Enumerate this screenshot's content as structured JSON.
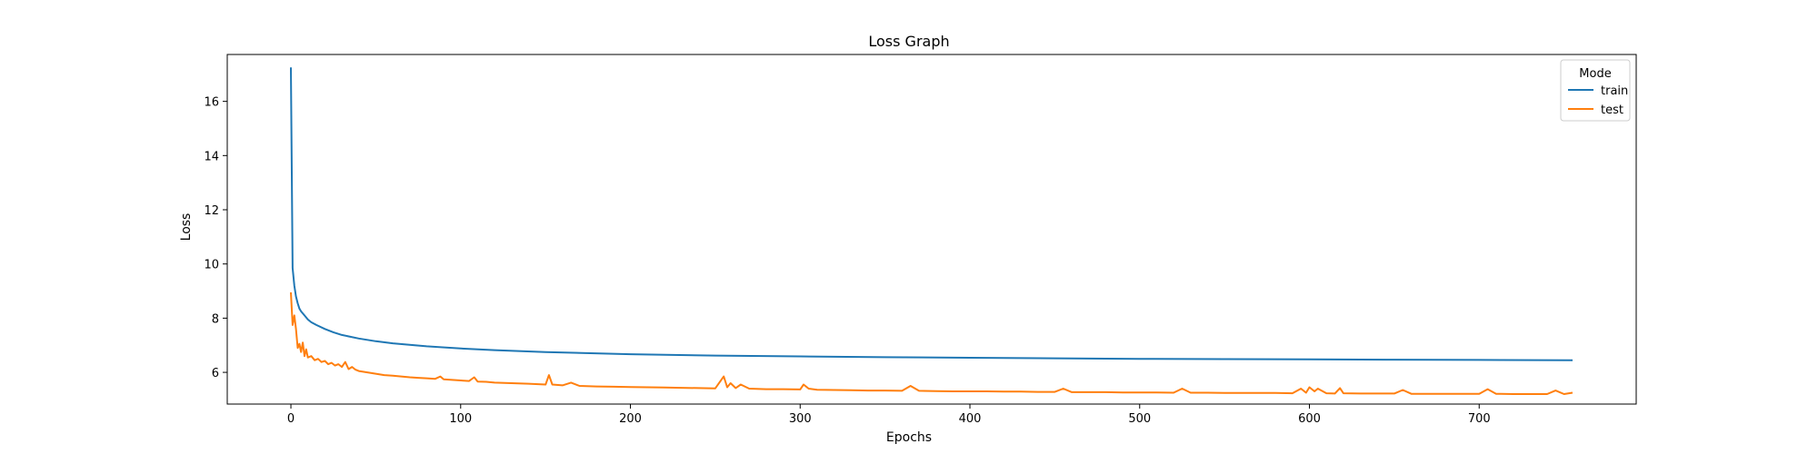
{
  "chart_data": {
    "type": "line",
    "title": "Loss Graph",
    "xlabel": "Epochs",
    "ylabel": "Loss",
    "xlim": [
      -37.5,
      792.5
    ],
    "ylim": [
      4.83,
      17.73
    ],
    "x_ticks": [
      0,
      100,
      200,
      300,
      400,
      500,
      600,
      700
    ],
    "y_ticks": [
      6,
      8,
      10,
      12,
      14,
      16
    ],
    "grid": false,
    "legend": {
      "title": "Mode",
      "position": "top-right"
    },
    "series": [
      {
        "name": "train",
        "color": "#1f77b4",
        "x": [
          0,
          1,
          2,
          3,
          4,
          5,
          6,
          8,
          10,
          12,
          15,
          20,
          25,
          30,
          40,
          50,
          60,
          80,
          100,
          120,
          150,
          200,
          250,
          300,
          350,
          400,
          450,
          500,
          550,
          600,
          650,
          700,
          755
        ],
        "values": [
          17.25,
          9.85,
          9.2,
          8.8,
          8.55,
          8.35,
          8.25,
          8.1,
          7.95,
          7.85,
          7.75,
          7.6,
          7.48,
          7.38,
          7.25,
          7.15,
          7.07,
          6.96,
          6.88,
          6.82,
          6.75,
          6.67,
          6.62,
          6.59,
          6.56,
          6.54,
          6.52,
          6.5,
          6.49,
          6.48,
          6.47,
          6.46,
          6.45
        ]
      },
      {
        "name": "test",
        "color": "#ff7f0e",
        "x": [
          0,
          1,
          2,
          3,
          4,
          5,
          6,
          7,
          8,
          9,
          10,
          12,
          14,
          16,
          18,
          20,
          22,
          24,
          26,
          28,
          30,
          32,
          34,
          36,
          38,
          40,
          45,
          50,
          55,
          60,
          65,
          70,
          75,
          80,
          85,
          88,
          90,
          95,
          100,
          105,
          108,
          110,
          115,
          120,
          130,
          140,
          150,
          152,
          154,
          160,
          165,
          170,
          180,
          190,
          200,
          210,
          220,
          230,
          240,
          250,
          255,
          257,
          259,
          262,
          265,
          270,
          280,
          290,
          300,
          302,
          305,
          310,
          320,
          330,
          340,
          350,
          360,
          365,
          370,
          380,
          390,
          400,
          410,
          420,
          430,
          440,
          450,
          455,
          460,
          470,
          480,
          490,
          500,
          510,
          520,
          525,
          530,
          540,
          550,
          560,
          570,
          580,
          590,
          595,
          598,
          600,
          603,
          605,
          610,
          615,
          618,
          620,
          630,
          640,
          650,
          655,
          660,
          670,
          680,
          690,
          700,
          705,
          710,
          720,
          730,
          740,
          745,
          750,
          755
        ],
        "values": [
          8.95,
          7.75,
          8.1,
          7.6,
          6.9,
          7.05,
          6.75,
          7.1,
          6.6,
          6.85,
          6.55,
          6.6,
          6.45,
          6.5,
          6.38,
          6.42,
          6.3,
          6.35,
          6.25,
          6.3,
          6.2,
          6.38,
          6.12,
          6.2,
          6.1,
          6.05,
          6.0,
          5.95,
          5.9,
          5.88,
          5.85,
          5.82,
          5.8,
          5.78,
          5.76,
          5.85,
          5.74,
          5.72,
          5.7,
          5.68,
          5.82,
          5.66,
          5.65,
          5.62,
          5.6,
          5.58,
          5.55,
          5.9,
          5.55,
          5.52,
          5.62,
          5.5,
          5.48,
          5.47,
          5.46,
          5.45,
          5.44,
          5.43,
          5.42,
          5.41,
          5.85,
          5.45,
          5.6,
          5.42,
          5.55,
          5.4,
          5.38,
          5.38,
          5.37,
          5.55,
          5.4,
          5.36,
          5.35,
          5.34,
          5.33,
          5.33,
          5.32,
          5.5,
          5.32,
          5.31,
          5.3,
          5.3,
          5.3,
          5.29,
          5.29,
          5.28,
          5.28,
          5.4,
          5.27,
          5.27,
          5.27,
          5.26,
          5.26,
          5.26,
          5.25,
          5.4,
          5.25,
          5.25,
          5.24,
          5.24,
          5.24,
          5.24,
          5.23,
          5.4,
          5.25,
          5.45,
          5.3,
          5.4,
          5.23,
          5.22,
          5.42,
          5.23,
          5.22,
          5.22,
          5.22,
          5.35,
          5.21,
          5.21,
          5.21,
          5.21,
          5.21,
          5.38,
          5.21,
          5.2,
          5.2,
          5.2,
          5.33,
          5.2,
          5.25
        ]
      }
    ]
  }
}
